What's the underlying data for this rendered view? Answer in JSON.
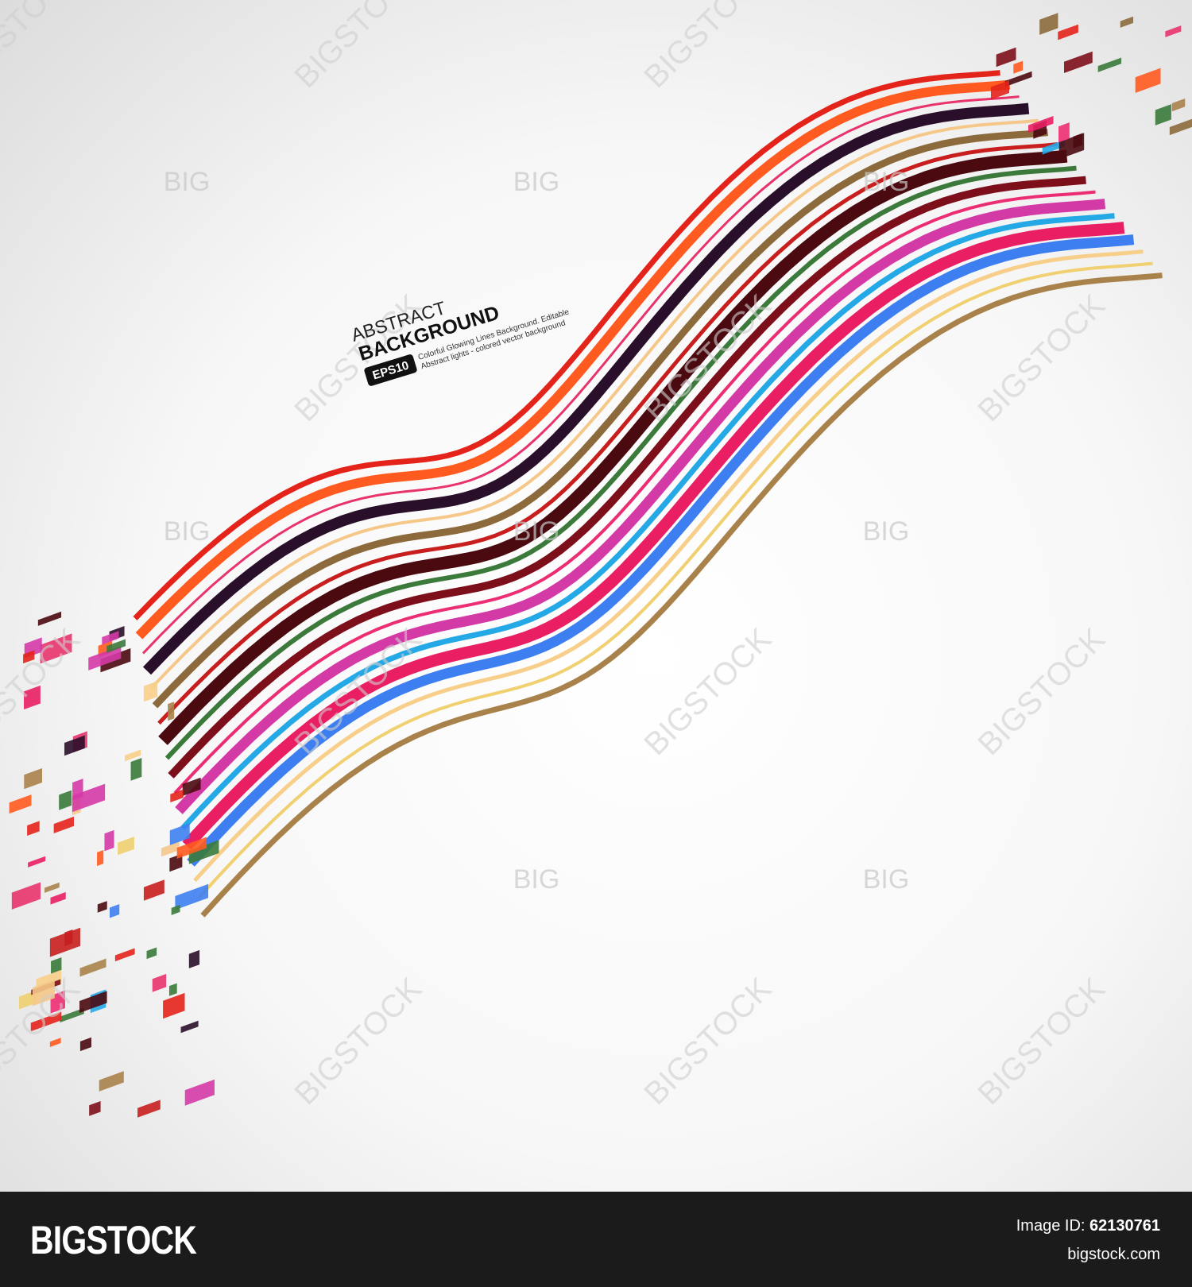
{
  "header": {
    "title": "ABSTRACT",
    "subtitle": "BACKGROUND",
    "badge": "EPS10",
    "caption_lines": [
      "Colorful Glowing Lines Background. Editable",
      "Abstract lights - colored vector background"
    ]
  },
  "watermark": {
    "text": "BIGSTOCK",
    "short": "BIG"
  },
  "footer": {
    "brand": "BIGSTOCK",
    "id_label": "Image ID:",
    "id_value": "62130761",
    "site": "bigstock.com"
  }
}
